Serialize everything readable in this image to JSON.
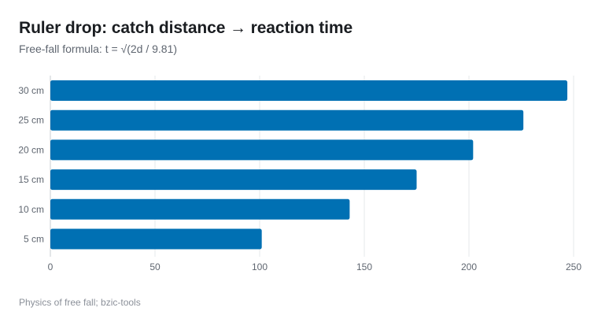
{
  "header": {
    "title": "Ruler drop: catch distance → reaction time",
    "subtitle": "Free-fall formula: t = √(2d / 9.81)"
  },
  "footer": {
    "source": "Physics of free fall; bzic-tools"
  },
  "colors": {
    "bar": "#0070b3",
    "grid": "#e6e8eb",
    "axis": "#c7ccd1"
  },
  "chart_data": {
    "type": "bar",
    "orientation": "horizontal",
    "title": "Ruler drop: catch distance → reaction time",
    "subtitle": "Free-fall formula: t = √(2d / 9.81)",
    "xlabel": "",
    "ylabel": "",
    "categories": [
      "30 cm",
      "25 cm",
      "20 cm",
      "15 cm",
      "10 cm",
      "5 cm"
    ],
    "values": [
      247,
      226,
      202,
      175,
      143,
      101
    ],
    "xlim": [
      0,
      250
    ],
    "xticks": [
      0,
      50,
      100,
      150,
      200,
      250
    ],
    "grid": "vertical",
    "legend": "none"
  }
}
